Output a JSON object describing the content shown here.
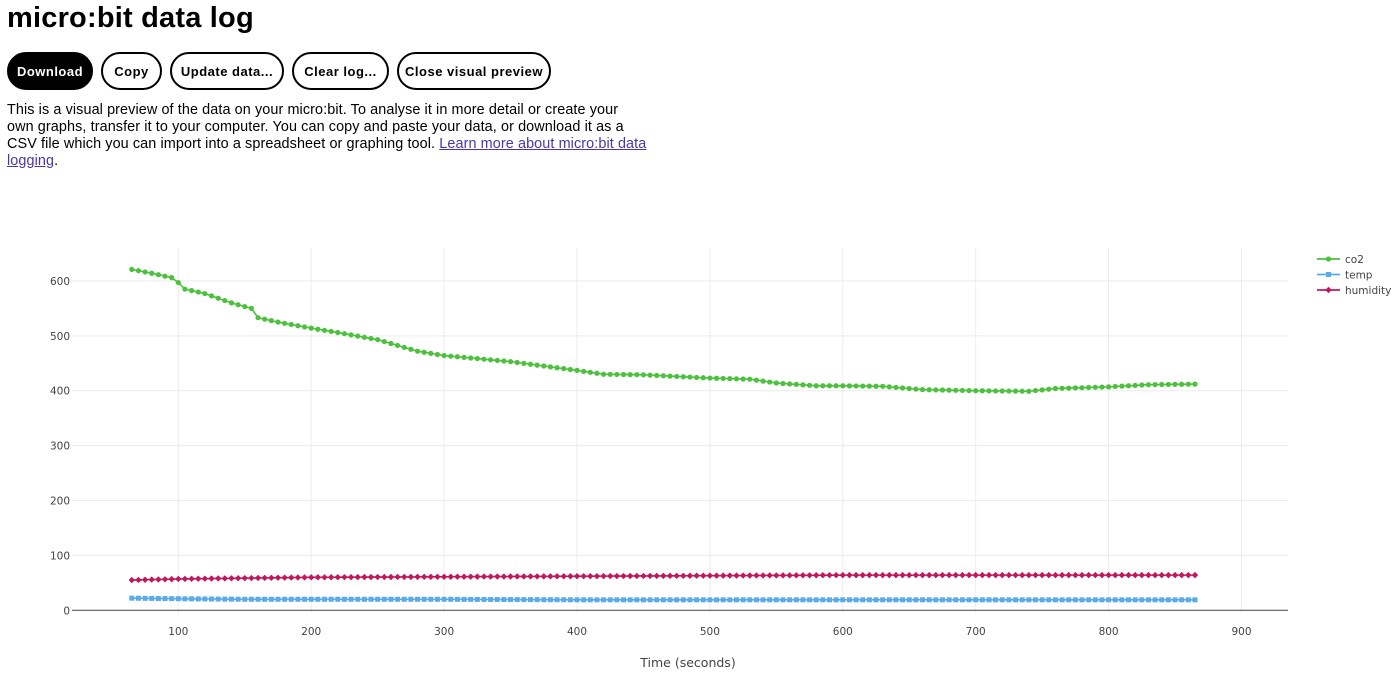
{
  "page": {
    "title": "micro:bit data log"
  },
  "toolbar": {
    "download_label": "Download",
    "copy_label": "Copy",
    "update_label": "Update data...",
    "clear_label": "Clear log...",
    "close_preview_label": "Close visual preview"
  },
  "intro": {
    "text": "This is a visual preview of the data on your micro:bit. To analyse it in more detail or create your own graphs, transfer it to your computer. You can copy and paste your data, or download it as a CSV file which you can import into a spreadsheet or graphing tool.",
    "link_text": "Learn more about micro:bit data logging",
    "suffix": "."
  },
  "chart_data": {
    "type": "line",
    "xlabel": "Time (seconds)",
    "ylabel": "",
    "xlim": [
      20,
      935
    ],
    "ylim": [
      -5,
      660
    ],
    "x_ticks": [
      100,
      200,
      300,
      400,
      500,
      600,
      700,
      800,
      900
    ],
    "y_ticks": [
      0,
      100,
      200,
      300,
      400,
      500,
      600
    ],
    "grid": true,
    "legend_position": "top-right",
    "x": {
      "start": 65,
      "step": 5,
      "count": 161
    },
    "series": [
      {
        "name": "co2",
        "color": "#4cc13d",
        "marker": "circle",
        "keypoints": [
          [
            65,
            621
          ],
          [
            80,
            614
          ],
          [
            95,
            606
          ],
          [
            100,
            597
          ],
          [
            105,
            585
          ],
          [
            120,
            577
          ],
          [
            140,
            560
          ],
          [
            155,
            550
          ],
          [
            160,
            533
          ],
          [
            175,
            525
          ],
          [
            200,
            514
          ],
          [
            220,
            506
          ],
          [
            250,
            493
          ],
          [
            280,
            472
          ],
          [
            300,
            464
          ],
          [
            350,
            453
          ],
          [
            400,
            437
          ],
          [
            420,
            430
          ],
          [
            450,
            429
          ],
          [
            500,
            423
          ],
          [
            530,
            421
          ],
          [
            550,
            414
          ],
          [
            580,
            409
          ],
          [
            600,
            409
          ],
          [
            630,
            408
          ],
          [
            660,
            402
          ],
          [
            700,
            400
          ],
          [
            740,
            399
          ],
          [
            760,
            404
          ],
          [
            800,
            407
          ],
          [
            830,
            411
          ],
          [
            865,
            412
          ]
        ]
      },
      {
        "name": "temp",
        "color": "#5aabe8",
        "marker": "square",
        "keypoints": [
          [
            65,
            22
          ],
          [
            100,
            21
          ],
          [
            150,
            20
          ],
          [
            300,
            20
          ],
          [
            400,
            19
          ],
          [
            865,
            19
          ]
        ]
      },
      {
        "name": "humidity",
        "color": "#c2185b",
        "marker": "diamond",
        "keypoints": [
          [
            65,
            55
          ],
          [
            100,
            57
          ],
          [
            200,
            60
          ],
          [
            400,
            62
          ],
          [
            600,
            64
          ],
          [
            865,
            64
          ]
        ]
      }
    ]
  }
}
